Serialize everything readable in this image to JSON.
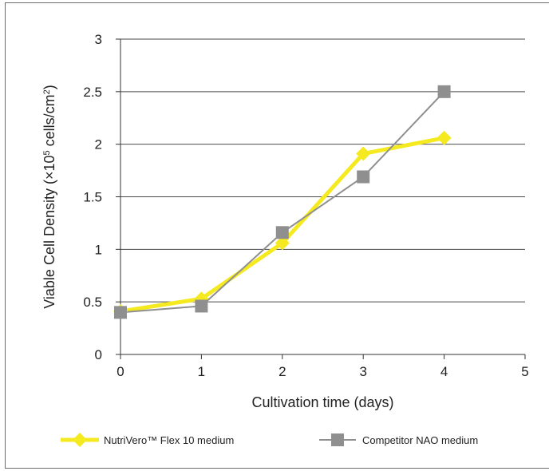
{
  "chart_data": {
    "type": "line",
    "x": [
      0,
      1,
      2,
      3,
      4
    ],
    "xlim": [
      0,
      5
    ],
    "ylim": [
      0,
      3
    ],
    "xticks": [
      "0",
      "1",
      "2",
      "3",
      "4",
      "5"
    ],
    "yticks": [
      "0",
      "0.5",
      "1",
      "1.5",
      "2",
      "2.5",
      "3"
    ],
    "xlabel": "Cultivation time (days)",
    "ylabel_parts": {
      "pre": "Viable Cell Density (×10",
      "sup1": "5",
      "mid": " cells/cm",
      "sup2": "2",
      "post": ")"
    },
    "grid": "horizontal",
    "legend_position": "bottom",
    "series": [
      {
        "name": "NutriVero™ Flex 10 medium",
        "values": [
          0.41,
          0.53,
          1.06,
          1.91,
          2.06
        ],
        "color": "#f5ea1f",
        "marker": "diamond"
      },
      {
        "name": "Competitor NAO medium",
        "values": [
          0.4,
          0.46,
          1.16,
          1.69,
          2.5
        ],
        "color": "#8f8f8f",
        "marker": "square"
      }
    ]
  }
}
